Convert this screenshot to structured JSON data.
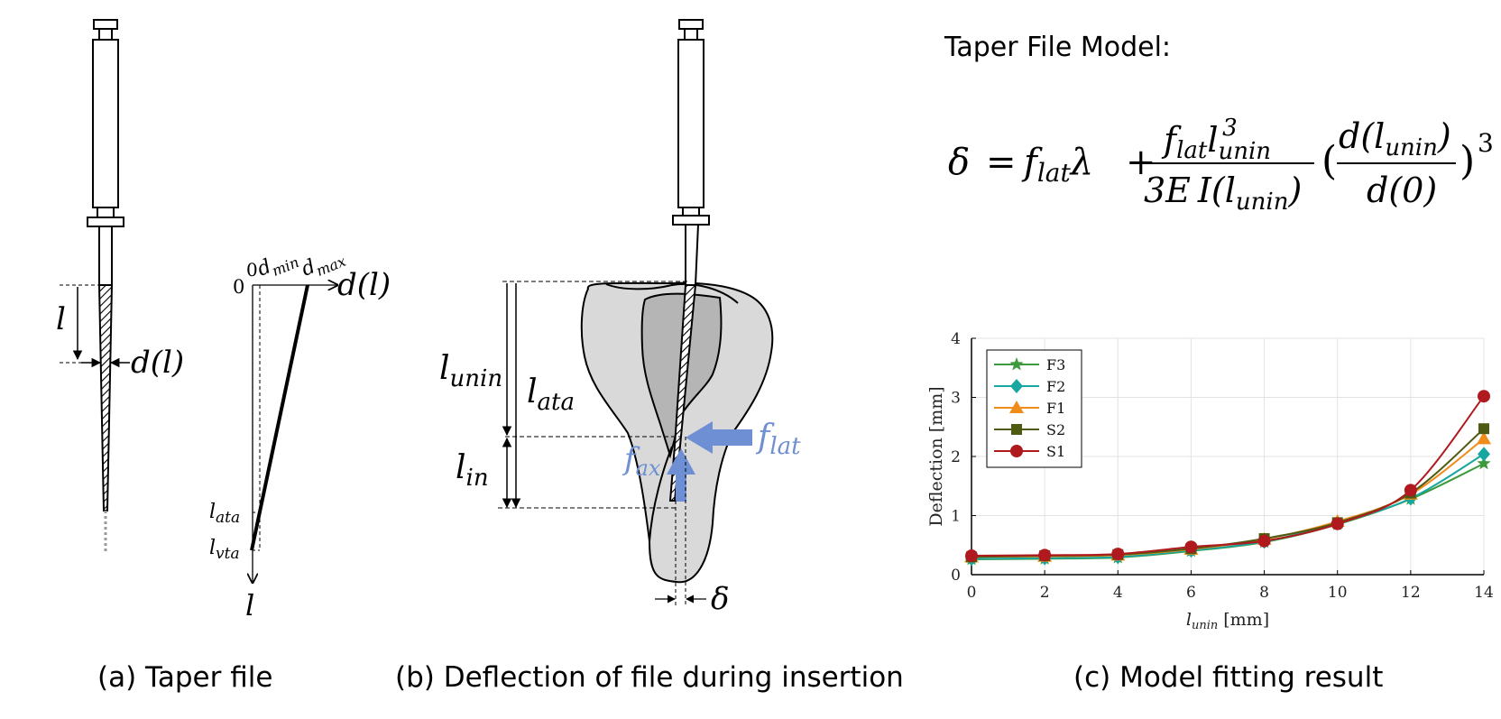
{
  "panel_a": {
    "caption": "(a) Taper file",
    "label_l": "l",
    "label_dl": "d(l)",
    "axis_zero_top": "0",
    "axis_zero_left": "0",
    "dmin": "d",
    "dmin_sub": "min",
    "dmax": "d",
    "dmax_sub": "max",
    "axis_d": "d(l)",
    "lata": "l",
    "lata_sub": "ata",
    "lvta": "l",
    "lvta_sub": "vta",
    "axis_l": "l"
  },
  "panel_b": {
    "caption": "(b) Deflection of file during insertion",
    "lunin": "l",
    "lunin_sub": "unin",
    "lata": "l",
    "lata_sub": "ata",
    "lin": "l",
    "lin_sub": "in",
    "flat": "f",
    "flat_sub": "lat",
    "fax": "f",
    "fax_sub": "ax",
    "delta": "δ",
    "force_color": "#6f8fd4",
    "tooth_color": "#d9d9d9",
    "pulp_color": "#b5b5b5"
  },
  "model": {
    "heading": "Taper File Model:",
    "delta": "δ",
    "eq": "=",
    "f": "f",
    "lat": "lat",
    "lambda": "λ",
    "plus": "+",
    "num_l": "l",
    "num_unin": "unin",
    "num_exp": "3",
    "den_3e": "3E",
    "den_I": "I(l",
    "den_unin": "unin",
    "den_close": ")",
    "paren_open": "(",
    "paren_close": ")",
    "frac2_num": "d(l",
    "frac2_num_sub": "unin",
    "frac2_num_close": ")",
    "frac2_den": "d(0)",
    "outer_exp": "3"
  },
  "panel_c": {
    "caption": "(c) Model fitting result"
  },
  "chart_data": {
    "type": "line",
    "xlabel": "l",
    "xlabel_sub": "unin",
    "xlabel_unit": "[mm]",
    "ylabel": "Deflection [mm]",
    "xlim": [
      0,
      14
    ],
    "ylim": [
      0,
      4
    ],
    "xticks": [
      0,
      2,
      4,
      6,
      8,
      10,
      12,
      14
    ],
    "yticks": [
      0,
      1,
      2,
      3,
      4
    ],
    "grid": true,
    "legend_position": "top-left",
    "x": [
      0,
      2,
      4,
      6,
      8,
      10,
      12,
      14
    ],
    "series": [
      {
        "name": "F3",
        "color": "#3c9a3c",
        "marker": "star",
        "values": [
          0.26,
          0.27,
          0.29,
          0.4,
          0.55,
          0.85,
          1.28,
          1.88
        ]
      },
      {
        "name": "F2",
        "color": "#17a6a0",
        "marker": "diamond",
        "values": [
          0.27,
          0.28,
          0.3,
          0.41,
          0.56,
          0.87,
          1.29,
          2.04
        ]
      },
      {
        "name": "F1",
        "color": "#f08c1a",
        "marker": "triangle",
        "values": [
          0.3,
          0.31,
          0.33,
          0.43,
          0.6,
          0.9,
          1.36,
          2.3
        ]
      },
      {
        "name": "S2",
        "color": "#4e5a12",
        "marker": "square",
        "values": [
          0.3,
          0.32,
          0.34,
          0.44,
          0.61,
          0.88,
          1.38,
          2.47
        ]
      },
      {
        "name": "S1",
        "color": "#b0191e",
        "marker": "circle",
        "values": [
          0.32,
          0.33,
          0.35,
          0.47,
          0.57,
          0.86,
          1.43,
          3.02
        ]
      }
    ]
  }
}
